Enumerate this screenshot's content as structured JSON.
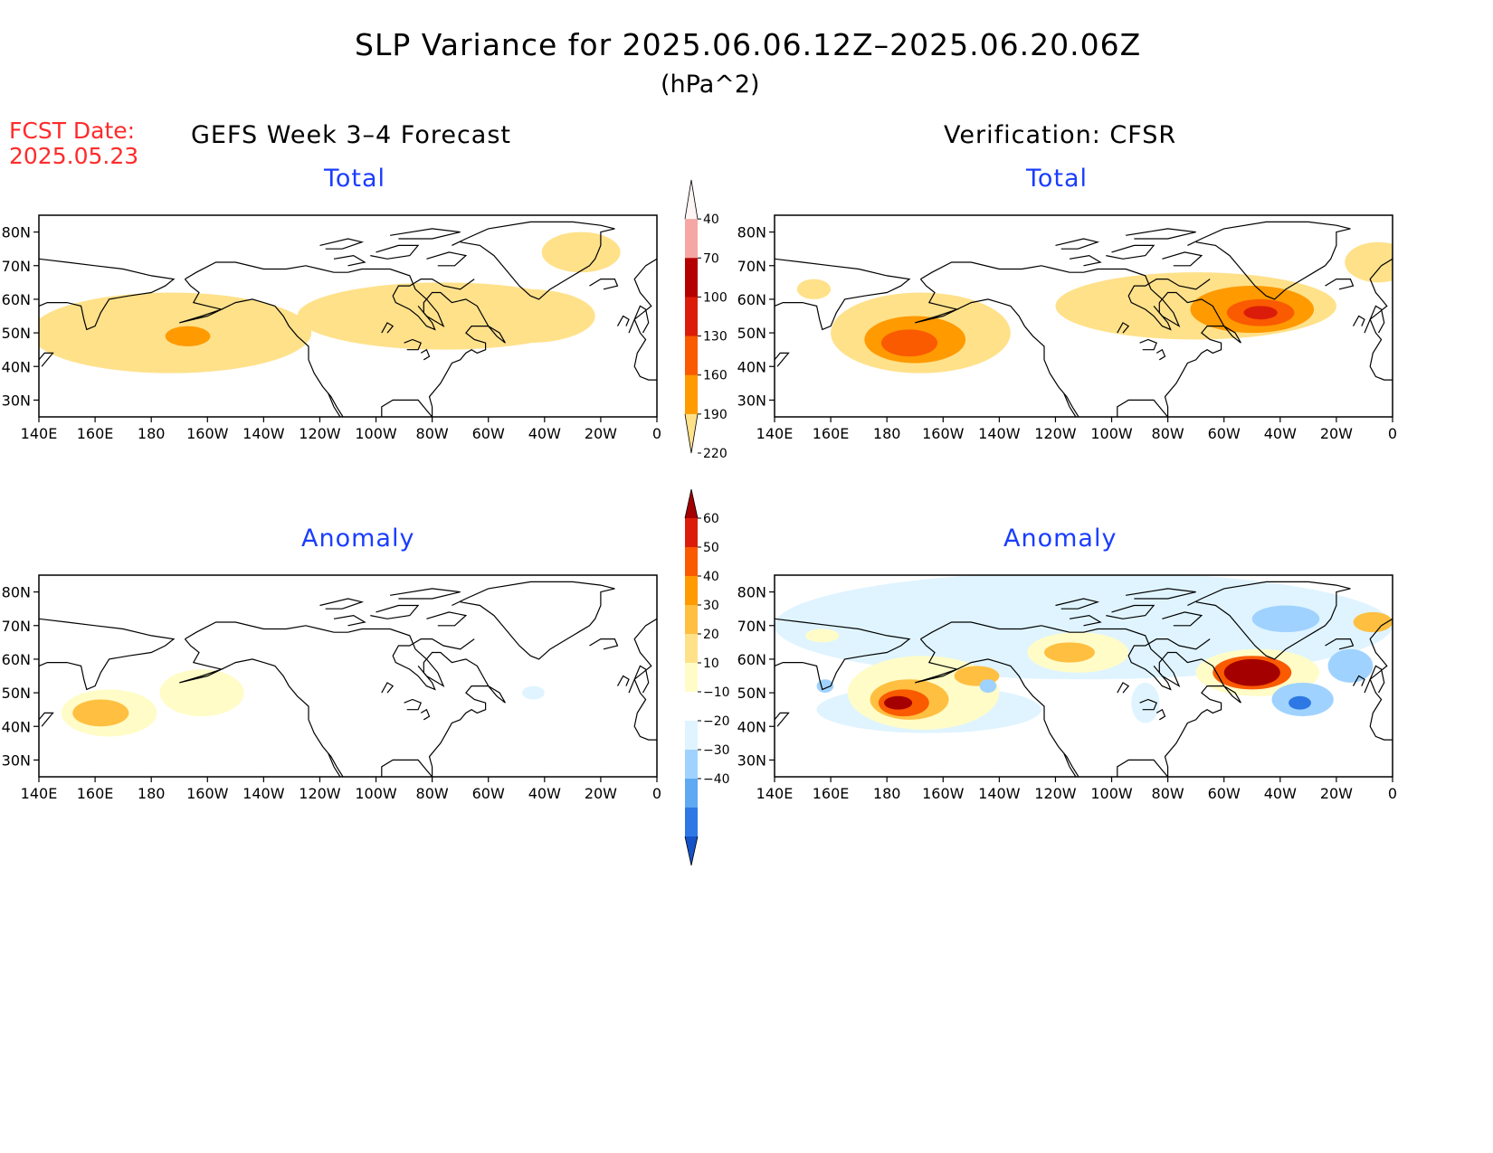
{
  "header": {
    "title": "SLP Variance for 2025.06.06.12Z–2025.06.20.06Z",
    "units": "(hPa^2)",
    "fcst_label": "FCST Date:",
    "fcst_date": "2025.05.23"
  },
  "columns": {
    "left_title": "GEFS Week 3–4 Forecast",
    "right_title": "Verification: CFSR"
  },
  "panels": [
    {
      "id": "fcst-total",
      "subtitle": "Total",
      "colorbar": "total",
      "blobs": [
        {
          "lon": 187,
          "lat": 50,
          "rlon": 50,
          "rlat": 12,
          "level": 40
        },
        {
          "lon": 193,
          "lat": 49,
          "rlon": 8,
          "rlat": 3,
          "level": 70
        },
        {
          "lon": 284,
          "lat": 55,
          "rlon": 52,
          "rlat": 10,
          "level": 40
        },
        {
          "lon": 314,
          "lat": 55,
          "rlon": 24,
          "rlat": 8,
          "level": 40
        },
        {
          "lon": 333,
          "lat": 74,
          "rlon": 14,
          "rlat": 6,
          "level": 40
        }
      ]
    },
    {
      "id": "cfsr-total",
      "subtitle": "Total",
      "colorbar": "total",
      "blobs": [
        {
          "lon": 192,
          "lat": 50,
          "rlon": 32,
          "rlat": 12,
          "level": 40
        },
        {
          "lon": 190,
          "lat": 48,
          "rlon": 18,
          "rlat": 7,
          "level": 70
        },
        {
          "lon": 188,
          "lat": 47,
          "rlon": 10,
          "rlat": 4,
          "level": 100
        },
        {
          "lon": 290,
          "lat": 58,
          "rlon": 50,
          "rlat": 10,
          "level": 40
        },
        {
          "lon": 310,
          "lat": 57,
          "rlon": 22,
          "rlat": 7,
          "level": 70
        },
        {
          "lon": 313,
          "lat": 56,
          "rlon": 12,
          "rlat": 4,
          "level": 100
        },
        {
          "lon": 313,
          "lat": 56,
          "rlon": 6,
          "rlat": 2,
          "level": 130
        },
        {
          "lon": 154,
          "lat": 63,
          "rlon": 6,
          "rlat": 3,
          "level": 40
        },
        {
          "lon": 355,
          "lat": 71,
          "rlon": 12,
          "rlat": 6,
          "level": 40
        }
      ]
    },
    {
      "id": "fcst-anom",
      "subtitle": "Anomaly",
      "colorbar": "anomaly",
      "blobs": [
        {
          "lon": 165,
          "lat": 44,
          "rlon": 17,
          "rlat": 7,
          "level": 10
        },
        {
          "lon": 162,
          "lat": 44,
          "rlon": 10,
          "rlat": 4,
          "level": 20
        },
        {
          "lon": 198,
          "lat": 50,
          "rlon": 15,
          "rlat": 7,
          "level": 10
        },
        {
          "lon": 316,
          "lat": 50,
          "rlon": 4,
          "rlat": 2,
          "level": -10
        }
      ]
    },
    {
      "id": "cfsr-anom",
      "subtitle": "Anomaly",
      "colorbar": "anomaly",
      "blobs": [
        {
          "lon": 250,
          "lat": 70,
          "rlon": 110,
          "rlat": 16,
          "level": -10
        },
        {
          "lon": 195,
          "lat": 45,
          "rlon": 40,
          "rlat": 7,
          "level": -10
        },
        {
          "lon": 193,
          "lat": 50,
          "rlon": 27,
          "rlat": 11,
          "level": 10
        },
        {
          "lon": 188,
          "lat": 48,
          "rlon": 14,
          "rlat": 6,
          "level": 20
        },
        {
          "lon": 186,
          "lat": 47,
          "rlon": 9,
          "rlat": 4,
          "level": 40
        },
        {
          "lon": 184,
          "lat": 47,
          "rlon": 5,
          "rlat": 2,
          "level": 60
        },
        {
          "lon": 212,
          "lat": 55,
          "rlon": 8,
          "rlat": 3,
          "level": 20
        },
        {
          "lon": 248,
          "lat": 62,
          "rlon": 18,
          "rlat": 6,
          "level": 10
        },
        {
          "lon": 245,
          "lat": 62,
          "rlon": 9,
          "rlat": 3,
          "level": 20
        },
        {
          "lon": 312,
          "lat": 56,
          "rlon": 22,
          "rlat": 7,
          "level": 10
        },
        {
          "lon": 310,
          "lat": 56,
          "rlon": 14,
          "rlat": 5,
          "level": 40
        },
        {
          "lon": 310,
          "lat": 56,
          "rlon": 10,
          "rlat": 4,
          "level": 60
        },
        {
          "lon": 328,
          "lat": 48,
          "rlon": 11,
          "rlat": 5,
          "level": -20
        },
        {
          "lon": 327,
          "lat": 47,
          "rlon": 4,
          "rlat": 2,
          "level": -40
        },
        {
          "lon": 345,
          "lat": 58,
          "rlon": 8,
          "rlat": 5,
          "level": -20
        },
        {
          "lon": 322,
          "lat": 72,
          "rlon": 12,
          "rlat": 4,
          "level": -20
        },
        {
          "lon": 158,
          "lat": 52,
          "rlon": 3,
          "rlat": 2,
          "level": -20
        },
        {
          "lon": 157,
          "lat": 67,
          "rlon": 6,
          "rlat": 2,
          "level": 10
        },
        {
          "lon": 353,
          "lat": 71,
          "rlon": 7,
          "rlat": 3,
          "level": 20
        },
        {
          "lon": 272,
          "lat": 47,
          "rlon": 5,
          "rlat": 6,
          "level": -10
        },
        {
          "lon": 216,
          "lat": 52,
          "rlon": 3,
          "rlat": 2,
          "level": -20
        }
      ]
    }
  ],
  "axes": {
    "lat_labels": [
      "30N",
      "40N",
      "50N",
      "60N",
      "70N",
      "80N"
    ],
    "lat_values": [
      30,
      40,
      50,
      60,
      70,
      80
    ],
    "lon_labels": [
      "140E",
      "160E",
      "180",
      "160W",
      "140W",
      "120W",
      "100W",
      "80W",
      "60W",
      "40W",
      "20W",
      "0"
    ],
    "lon_values": [
      140,
      160,
      180,
      200,
      220,
      240,
      260,
      280,
      300,
      320,
      340,
      360
    ],
    "lat_range": [
      25,
      85
    ],
    "lon_range": [
      140,
      360
    ]
  },
  "colorbars": {
    "total": {
      "labels": [
        "40",
        "70",
        "100",
        "130",
        "160",
        "190",
        "220"
      ],
      "levels": [
        40,
        70,
        100,
        130,
        160,
        190,
        220
      ],
      "colors": [
        "#fff5f5",
        "#f4a7a4",
        "#b40000",
        "#dc1c0a",
        "#fa5a00",
        "#ff9a00",
        "#ffe18a"
      ]
    },
    "anomaly": {
      "labels": [
        "60",
        "50",
        "40",
        "30",
        "20",
        "10",
        "−10",
        "−20",
        "−30",
        "−40"
      ],
      "levels": [
        60,
        50,
        40,
        30,
        20,
        10,
        -10,
        -20,
        -30,
        -40
      ],
      "colors": [
        "#a50000",
        "#dc1c0a",
        "#fa5a00",
        "#ff9a00",
        "#ffbf40",
        "#ffe18a",
        "#fffcc8",
        "#ffffff",
        "#dff4ff",
        "#a0d2ff",
        "#5fa8f2",
        "#2d78e4",
        "#1452c8"
      ]
    }
  },
  "colors": {
    "total_fill": {
      "40": "#ffe18a",
      "70": "#ff9a00",
      "100": "#fa5a00",
      "130": "#dc1c0a",
      "160": "#b40000"
    },
    "anomaly_fill": {
      "10": "#fffcc8",
      "20": "#ffbf40",
      "40": "#fa5a00",
      "60": "#a50000",
      "-10": "#dff4ff",
      "-20": "#a0d2ff",
      "-40": "#2d78e4"
    },
    "subtitle": "#1a3dff",
    "fcst": "#ff2b2b"
  }
}
